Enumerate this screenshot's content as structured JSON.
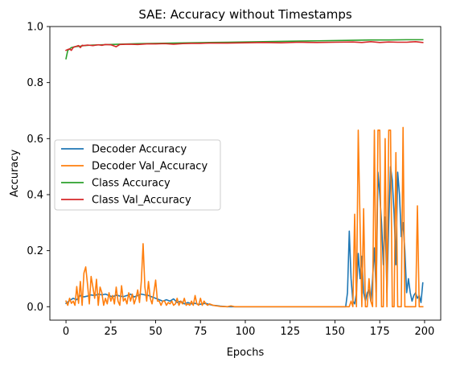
{
  "chart_data": {
    "type": "line",
    "title": "SAE: Accuracy without Timestamps",
    "xlabel": "Epochs",
    "ylabel": "Accuracy",
    "xlim": [
      -9,
      209
    ],
    "ylim": [
      -0.048,
      1.0
    ],
    "xticks": [
      0,
      25,
      50,
      75,
      100,
      125,
      150,
      175,
      200
    ],
    "yticks": [
      0.0,
      0.2,
      0.4,
      0.6,
      0.8,
      1.0
    ],
    "xtick_labels": [
      "0",
      "25",
      "50",
      "75",
      "100",
      "125",
      "150",
      "175",
      "200"
    ],
    "ytick_labels": [
      "0.0",
      "0.2",
      "0.4",
      "0.6",
      "0.8",
      "1.0"
    ],
    "grid": false,
    "legend_position": "center-left",
    "series": [
      {
        "name": "Decoder Accuracy",
        "color": "#1f77b4",
        "points": [
          [
            0,
            0.012
          ],
          [
            2,
            0.022
          ],
          [
            4,
            0.03
          ],
          [
            6,
            0.025
          ],
          [
            8,
            0.04
          ],
          [
            10,
            0.035
          ],
          [
            12,
            0.038
          ],
          [
            14,
            0.042
          ],
          [
            16,
            0.04
          ],
          [
            18,
            0.045
          ],
          [
            20,
            0.042
          ],
          [
            22,
            0.045
          ],
          [
            24,
            0.04
          ],
          [
            26,
            0.035
          ],
          [
            28,
            0.042
          ],
          [
            30,
            0.038
          ],
          [
            32,
            0.036
          ],
          [
            34,
            0.04
          ],
          [
            36,
            0.045
          ],
          [
            38,
            0.035
          ],
          [
            40,
            0.04
          ],
          [
            42,
            0.045
          ],
          [
            44,
            0.042
          ],
          [
            46,
            0.04
          ],
          [
            48,
            0.035
          ],
          [
            50,
            0.03
          ],
          [
            52,
            0.025
          ],
          [
            54,
            0.02
          ],
          [
            56,
            0.025
          ],
          [
            58,
            0.02
          ],
          [
            60,
            0.028
          ],
          [
            62,
            0.015
          ],
          [
            64,
            0.02
          ],
          [
            66,
            0.01
          ],
          [
            68,
            0.015
          ],
          [
            70,
            0.01
          ],
          [
            72,
            0.012
          ],
          [
            74,
            0.008
          ],
          [
            76,
            0.01
          ],
          [
            78,
            0.012
          ],
          [
            80,
            0.008
          ],
          [
            82,
            0.005
          ],
          [
            84,
            0.004
          ],
          [
            86,
            0.002
          ],
          [
            88,
            0.001
          ],
          [
            90,
            0.0
          ],
          [
            95,
            0.0
          ],
          [
            100,
            0.0
          ],
          [
            110,
            0.0
          ],
          [
            120,
            0.0
          ],
          [
            130,
            0.0
          ],
          [
            140,
            0.0
          ],
          [
            150,
            0.0
          ],
          [
            156,
            0.0
          ],
          [
            157,
            0.05
          ],
          [
            158,
            0.27
          ],
          [
            159,
            0.1
          ],
          [
            160,
            0.02
          ],
          [
            161,
            0.01
          ],
          [
            162,
            0.05
          ],
          [
            163,
            0.19
          ],
          [
            164,
            0.1
          ],
          [
            165,
            0.18
          ],
          [
            166,
            0.05
          ],
          [
            167,
            0.02
          ],
          [
            168,
            0.05
          ],
          [
            169,
            0.06
          ],
          [
            170,
            0.02
          ],
          [
            171,
            0.1
          ],
          [
            172,
            0.21
          ],
          [
            173,
            0.05
          ],
          [
            174,
            0.48
          ],
          [
            175,
            0.4
          ],
          [
            176,
            0.3
          ],
          [
            177,
            0.15
          ],
          [
            178,
            0.32
          ],
          [
            179,
            0.05
          ],
          [
            180,
            0.3
          ],
          [
            181,
            0.5
          ],
          [
            182,
            0.45
          ],
          [
            183,
            0.33
          ],
          [
            184,
            0.15
          ],
          [
            185,
            0.48
          ],
          [
            186,
            0.4
          ],
          [
            187,
            0.25
          ],
          [
            188,
            0.3
          ],
          [
            189,
            0.2
          ],
          [
            190,
            0.05
          ],
          [
            191,
            0.1
          ],
          [
            192,
            0.05
          ],
          [
            193,
            0.02
          ],
          [
            194,
            0.04
          ],
          [
            195,
            0.05
          ],
          [
            196,
            0.03
          ],
          [
            197,
            0.04
          ],
          [
            198,
            0.015
          ],
          [
            199,
            0.085
          ]
        ]
      },
      {
        "name": "Decoder Val_Accuracy",
        "color": "#ff7f0e",
        "points": [
          [
            0,
            0.02
          ],
          [
            1,
            0.005
          ],
          [
            2,
            0.03
          ],
          [
            3,
            0.012
          ],
          [
            4,
            0.02
          ],
          [
            5,
            0.005
          ],
          [
            6,
            0.072
          ],
          [
            7,
            0.012
          ],
          [
            8,
            0.09
          ],
          [
            9,
            0.005
          ],
          [
            10,
            0.12
          ],
          [
            11,
            0.142
          ],
          [
            12,
            0.08
          ],
          [
            13,
            0.01
          ],
          [
            14,
            0.108
          ],
          [
            15,
            0.07
          ],
          [
            16,
            0.03
          ],
          [
            17,
            0.098
          ],
          [
            18,
            0.005
          ],
          [
            19,
            0.07
          ],
          [
            20,
            0.05
          ],
          [
            21,
            0.005
          ],
          [
            22,
            0.03
          ],
          [
            23,
            0.01
          ],
          [
            24,
            0.05
          ],
          [
            25,
            0.02
          ],
          [
            26,
            0.04
          ],
          [
            27,
            0.01
          ],
          [
            28,
            0.07
          ],
          [
            29,
            0.02
          ],
          [
            30,
            0.005
          ],
          [
            31,
            0.075
          ],
          [
            32,
            0.02
          ],
          [
            33,
            0.03
          ],
          [
            34,
            0.01
          ],
          [
            35,
            0.05
          ],
          [
            36,
            0.02
          ],
          [
            37,
            0.045
          ],
          [
            38,
            0.01
          ],
          [
            39,
            0.03
          ],
          [
            40,
            0.06
          ],
          [
            41,
            0.015
          ],
          [
            42,
            0.09
          ],
          [
            43,
            0.225
          ],
          [
            44,
            0.07
          ],
          [
            45,
            0.02
          ],
          [
            46,
            0.09
          ],
          [
            47,
            0.03
          ],
          [
            48,
            0.01
          ],
          [
            49,
            0.05
          ],
          [
            50,
            0.095
          ],
          [
            51,
            0.02
          ],
          [
            52,
            0.02
          ],
          [
            53,
            0.005
          ],
          [
            54,
            0.02
          ],
          [
            55,
            0.02
          ],
          [
            56,
            0.005
          ],
          [
            57,
            0.015
          ],
          [
            58,
            0.01
          ],
          [
            59,
            0.02
          ],
          [
            60,
            0.005
          ],
          [
            61,
            0.01
          ],
          [
            62,
            0.03
          ],
          [
            63,
            0.005
          ],
          [
            64,
            0.02
          ],
          [
            65,
            0.01
          ],
          [
            66,
            0.03
          ],
          [
            67,
            0.005
          ],
          [
            68,
            0.01
          ],
          [
            69,
            0.005
          ],
          [
            70,
            0.02
          ],
          [
            71,
            0.005
          ],
          [
            72,
            0.04
          ],
          [
            73,
            0.01
          ],
          [
            74,
            0.005
          ],
          [
            75,
            0.03
          ],
          [
            76,
            0.005
          ],
          [
            77,
            0.02
          ],
          [
            78,
            0.01
          ],
          [
            79,
            0.005
          ],
          [
            80,
            0.01
          ],
          [
            82,
            0.005
          ],
          [
            84,
            0.003
          ],
          [
            86,
            0.001
          ],
          [
            90,
            0.0
          ],
          [
            92,
            0.003
          ],
          [
            94,
            0.0
          ],
          [
            100,
            0.0
          ],
          [
            110,
            0.0
          ],
          [
            120,
            0.0
          ],
          [
            130,
            0.0
          ],
          [
            140,
            0.0
          ],
          [
            150,
            0.0
          ],
          [
            156,
            0.0
          ],
          [
            157,
            0.0
          ],
          [
            158,
            0.0
          ],
          [
            159,
            0.02
          ],
          [
            160,
            0.0
          ],
          [
            161,
            0.33
          ],
          [
            162,
            0.0
          ],
          [
            163,
            0.63
          ],
          [
            164,
            0.3
          ],
          [
            165,
            0.0
          ],
          [
            166,
            0.35
          ],
          [
            167,
            0.0
          ],
          [
            168,
            0.0
          ],
          [
            169,
            0.1
          ],
          [
            170,
            0.02
          ],
          [
            171,
            0.0
          ],
          [
            172,
            0.63
          ],
          [
            173,
            0.0
          ],
          [
            174,
            0.63
          ],
          [
            175,
            0.63
          ],
          [
            176,
            0.0
          ],
          [
            177,
            0.0
          ],
          [
            178,
            0.6
          ],
          [
            179,
            0.0
          ],
          [
            180,
            0.63
          ],
          [
            181,
            0.63
          ],
          [
            182,
            0.0
          ],
          [
            183,
            0.0
          ],
          [
            184,
            0.55
          ],
          [
            185,
            0.0
          ],
          [
            186,
            0.0
          ],
          [
            187,
            0.0
          ],
          [
            188,
            0.64
          ],
          [
            189,
            0.0
          ],
          [
            190,
            0.0
          ],
          [
            191,
            0.0
          ],
          [
            192,
            0.0
          ],
          [
            193,
            0.0
          ],
          [
            194,
            0.0
          ],
          [
            195,
            0.0
          ],
          [
            196,
            0.36
          ],
          [
            197,
            0.0
          ],
          [
            198,
            0.0
          ],
          [
            199,
            0.0
          ]
        ]
      },
      {
        "name": "Class Accuracy",
        "color": "#2ca02c",
        "points": [
          [
            0,
            0.885
          ],
          [
            1,
            0.915
          ],
          [
            2,
            0.92
          ],
          [
            3,
            0.925
          ],
          [
            5,
            0.928
          ],
          [
            8,
            0.93
          ],
          [
            10,
            0.932
          ],
          [
            15,
            0.934
          ],
          [
            20,
            0.935
          ],
          [
            25,
            0.936
          ],
          [
            30,
            0.937
          ],
          [
            40,
            0.939
          ],
          [
            50,
            0.94
          ],
          [
            60,
            0.941
          ],
          [
            70,
            0.942
          ],
          [
            80,
            0.943
          ],
          [
            90,
            0.944
          ],
          [
            100,
            0.945
          ],
          [
            110,
            0.946
          ],
          [
            120,
            0.947
          ],
          [
            130,
            0.948
          ],
          [
            140,
            0.949
          ],
          [
            150,
            0.95
          ],
          [
            160,
            0.951
          ],
          [
            170,
            0.952
          ],
          [
            180,
            0.952
          ],
          [
            190,
            0.953
          ],
          [
            199,
            0.953
          ]
        ]
      },
      {
        "name": "Class Val_Accuracy",
        "color": "#d62728",
        "points": [
          [
            0,
            0.915
          ],
          [
            1,
            0.918
          ],
          [
            2,
            0.92
          ],
          [
            3,
            0.915
          ],
          [
            4,
            0.925
          ],
          [
            5,
            0.928
          ],
          [
            6,
            0.93
          ],
          [
            7,
            0.932
          ],
          [
            8,
            0.925
          ],
          [
            9,
            0.933
          ],
          [
            10,
            0.932
          ],
          [
            12,
            0.934
          ],
          [
            15,
            0.932
          ],
          [
            18,
            0.935
          ],
          [
            20,
            0.933
          ],
          [
            22,
            0.936
          ],
          [
            25,
            0.935
          ],
          [
            28,
            0.928
          ],
          [
            30,
            0.936
          ],
          [
            35,
            0.937
          ],
          [
            40,
            0.936
          ],
          [
            45,
            0.938
          ],
          [
            50,
            0.938
          ],
          [
            55,
            0.939
          ],
          [
            60,
            0.937
          ],
          [
            65,
            0.939
          ],
          [
            70,
            0.94
          ],
          [
            75,
            0.94
          ],
          [
            80,
            0.941
          ],
          [
            90,
            0.941
          ],
          [
            100,
            0.942
          ],
          [
            110,
            0.943
          ],
          [
            120,
            0.942
          ],
          [
            130,
            0.944
          ],
          [
            140,
            0.943
          ],
          [
            150,
            0.944
          ],
          [
            160,
            0.945
          ],
          [
            165,
            0.943
          ],
          [
            170,
            0.946
          ],
          [
            175,
            0.943
          ],
          [
            180,
            0.945
          ],
          [
            185,
            0.944
          ],
          [
            190,
            0.944
          ],
          [
            195,
            0.946
          ],
          [
            199,
            0.943
          ]
        ]
      }
    ]
  }
}
